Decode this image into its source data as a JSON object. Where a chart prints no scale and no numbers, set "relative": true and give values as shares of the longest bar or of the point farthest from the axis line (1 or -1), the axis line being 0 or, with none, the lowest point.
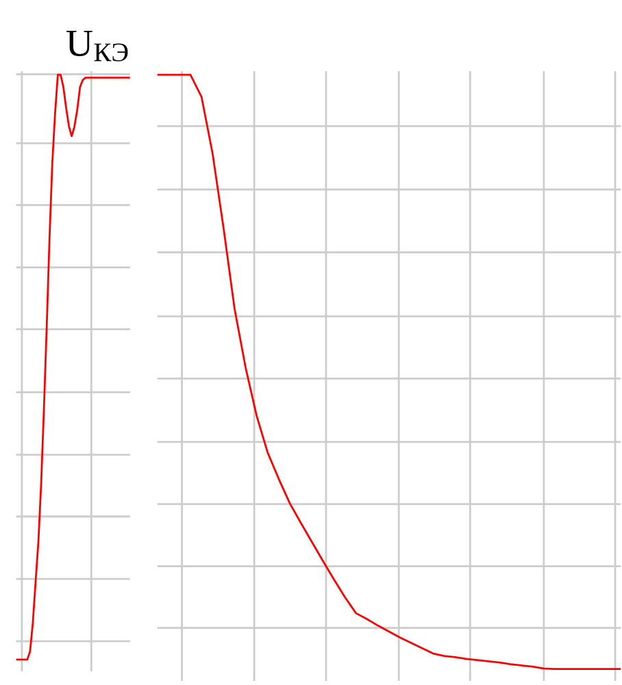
{
  "chart_data": [
    {
      "type": "line",
      "title": "U$_{КЭ}$",
      "relative": true,
      "grid": true,
      "categories": [
        null,
        null,
        null,
        null,
        null,
        null,
        null,
        null,
        null,
        null,
        null,
        null,
        null,
        null,
        null,
        null,
        null,
        null,
        null,
        null,
        null,
        null,
        null,
        null,
        null,
        null,
        null,
        null,
        null,
        null,
        null,
        null,
        null,
        null,
        null,
        null,
        null,
        null,
        null,
        null,
        null,
        null
      ],
      "series": [
        {
          "color": "#ff0000",
          "values": [
            0,
            0,
            0,
            0,
            0,
            0.014,
            0.063,
            0.133,
            0.202,
            0.301,
            0.429,
            0.569,
            0.72,
            0.848,
            0.933,
            1,
            1,
            0.979,
            0.943,
            0.912,
            0.895,
            0.912,
            0.94,
            0.979,
            0.991,
            0.995,
            0.995,
            0.995,
            0.995,
            0.995,
            0.995,
            0.995,
            0.995,
            0.995,
            0.995,
            0.995,
            0.995,
            0.995,
            0.995,
            0.995,
            0.995,
            0.995
          ]
        }
      ]
    },
    {
      "type": "line",
      "relative": true,
      "grid": true,
      "categories": [
        null,
        null,
        null,
        null,
        null,
        null,
        null,
        null,
        null,
        null,
        null,
        null,
        null,
        null,
        null,
        null,
        null,
        null,
        null,
        null,
        null,
        null,
        null,
        null,
        null,
        null,
        null,
        null,
        null,
        null,
        null,
        null,
        null,
        null,
        null,
        null,
        null,
        null,
        null,
        null,
        null,
        null,
        null
      ],
      "series": [
        {
          "color": "#ff0000",
          "values": [
            1,
            1,
            1,
            1,
            0.963,
            0.868,
            0.742,
            0.606,
            0.507,
            0.426,
            0.364,
            0.32,
            0.279,
            0.246,
            0.214,
            0.182,
            0.151,
            0.121,
            0.094,
            0.084,
            0.073,
            0.063,
            0.053,
            0.044,
            0.035,
            0.026,
            0.022,
            0.02,
            0.017,
            0.015,
            0.013,
            0.011,
            0.008,
            0.006,
            0.004,
            0.001,
            0,
            0,
            0,
            0,
            0,
            0,
            0
          ]
        }
      ]
    }
  ]
}
